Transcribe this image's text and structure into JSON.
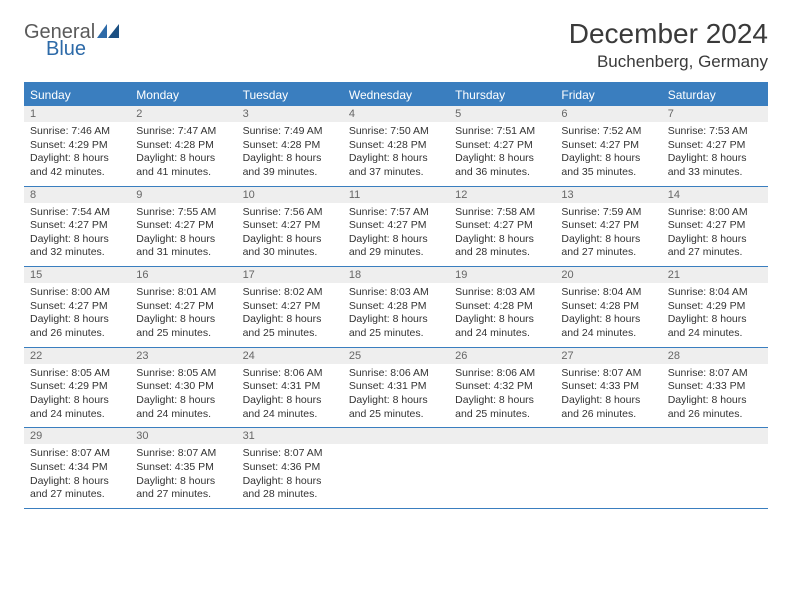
{
  "logo": {
    "text1": "General",
    "text2": "Blue"
  },
  "title": "December 2024",
  "location": "Buchenberg, Germany",
  "colors": {
    "header_bg": "#3a7ebf",
    "header_text": "#ffffff",
    "daynum_bg": "#eeeeee",
    "daynum_text": "#666666",
    "body_text": "#333333",
    "divider": "#3a7ebf"
  },
  "weekdays": [
    "Sunday",
    "Monday",
    "Tuesday",
    "Wednesday",
    "Thursday",
    "Friday",
    "Saturday"
  ],
  "weeks": [
    [
      {
        "n": "1",
        "sr": "7:46 AM",
        "ss": "4:29 PM",
        "dl": "8 hours and 42 minutes."
      },
      {
        "n": "2",
        "sr": "7:47 AM",
        "ss": "4:28 PM",
        "dl": "8 hours and 41 minutes."
      },
      {
        "n": "3",
        "sr": "7:49 AM",
        "ss": "4:28 PM",
        "dl": "8 hours and 39 minutes."
      },
      {
        "n": "4",
        "sr": "7:50 AM",
        "ss": "4:28 PM",
        "dl": "8 hours and 37 minutes."
      },
      {
        "n": "5",
        "sr": "7:51 AM",
        "ss": "4:27 PM",
        "dl": "8 hours and 36 minutes."
      },
      {
        "n": "6",
        "sr": "7:52 AM",
        "ss": "4:27 PM",
        "dl": "8 hours and 35 minutes."
      },
      {
        "n": "7",
        "sr": "7:53 AM",
        "ss": "4:27 PM",
        "dl": "8 hours and 33 minutes."
      }
    ],
    [
      {
        "n": "8",
        "sr": "7:54 AM",
        "ss": "4:27 PM",
        "dl": "8 hours and 32 minutes."
      },
      {
        "n": "9",
        "sr": "7:55 AM",
        "ss": "4:27 PM",
        "dl": "8 hours and 31 minutes."
      },
      {
        "n": "10",
        "sr": "7:56 AM",
        "ss": "4:27 PM",
        "dl": "8 hours and 30 minutes."
      },
      {
        "n": "11",
        "sr": "7:57 AM",
        "ss": "4:27 PM",
        "dl": "8 hours and 29 minutes."
      },
      {
        "n": "12",
        "sr": "7:58 AM",
        "ss": "4:27 PM",
        "dl": "8 hours and 28 minutes."
      },
      {
        "n": "13",
        "sr": "7:59 AM",
        "ss": "4:27 PM",
        "dl": "8 hours and 27 minutes."
      },
      {
        "n": "14",
        "sr": "8:00 AM",
        "ss": "4:27 PM",
        "dl": "8 hours and 27 minutes."
      }
    ],
    [
      {
        "n": "15",
        "sr": "8:00 AM",
        "ss": "4:27 PM",
        "dl": "8 hours and 26 minutes."
      },
      {
        "n": "16",
        "sr": "8:01 AM",
        "ss": "4:27 PM",
        "dl": "8 hours and 25 minutes."
      },
      {
        "n": "17",
        "sr": "8:02 AM",
        "ss": "4:27 PM",
        "dl": "8 hours and 25 minutes."
      },
      {
        "n": "18",
        "sr": "8:03 AM",
        "ss": "4:28 PM",
        "dl": "8 hours and 25 minutes."
      },
      {
        "n": "19",
        "sr": "8:03 AM",
        "ss": "4:28 PM",
        "dl": "8 hours and 24 minutes."
      },
      {
        "n": "20",
        "sr": "8:04 AM",
        "ss": "4:28 PM",
        "dl": "8 hours and 24 minutes."
      },
      {
        "n": "21",
        "sr": "8:04 AM",
        "ss": "4:29 PM",
        "dl": "8 hours and 24 minutes."
      }
    ],
    [
      {
        "n": "22",
        "sr": "8:05 AM",
        "ss": "4:29 PM",
        "dl": "8 hours and 24 minutes."
      },
      {
        "n": "23",
        "sr": "8:05 AM",
        "ss": "4:30 PM",
        "dl": "8 hours and 24 minutes."
      },
      {
        "n": "24",
        "sr": "8:06 AM",
        "ss": "4:31 PM",
        "dl": "8 hours and 24 minutes."
      },
      {
        "n": "25",
        "sr": "8:06 AM",
        "ss": "4:31 PM",
        "dl": "8 hours and 25 minutes."
      },
      {
        "n": "26",
        "sr": "8:06 AM",
        "ss": "4:32 PM",
        "dl": "8 hours and 25 minutes."
      },
      {
        "n": "27",
        "sr": "8:07 AM",
        "ss": "4:33 PM",
        "dl": "8 hours and 26 minutes."
      },
      {
        "n": "28",
        "sr": "8:07 AM",
        "ss": "4:33 PM",
        "dl": "8 hours and 26 minutes."
      }
    ],
    [
      {
        "n": "29",
        "sr": "8:07 AM",
        "ss": "4:34 PM",
        "dl": "8 hours and 27 minutes."
      },
      {
        "n": "30",
        "sr": "8:07 AM",
        "ss": "4:35 PM",
        "dl": "8 hours and 27 minutes."
      },
      {
        "n": "31",
        "sr": "8:07 AM",
        "ss": "4:36 PM",
        "dl": "8 hours and 28 minutes."
      },
      null,
      null,
      null,
      null
    ]
  ],
  "labels": {
    "sunrise": "Sunrise: ",
    "sunset": "Sunset: ",
    "daylight": "Daylight: "
  }
}
